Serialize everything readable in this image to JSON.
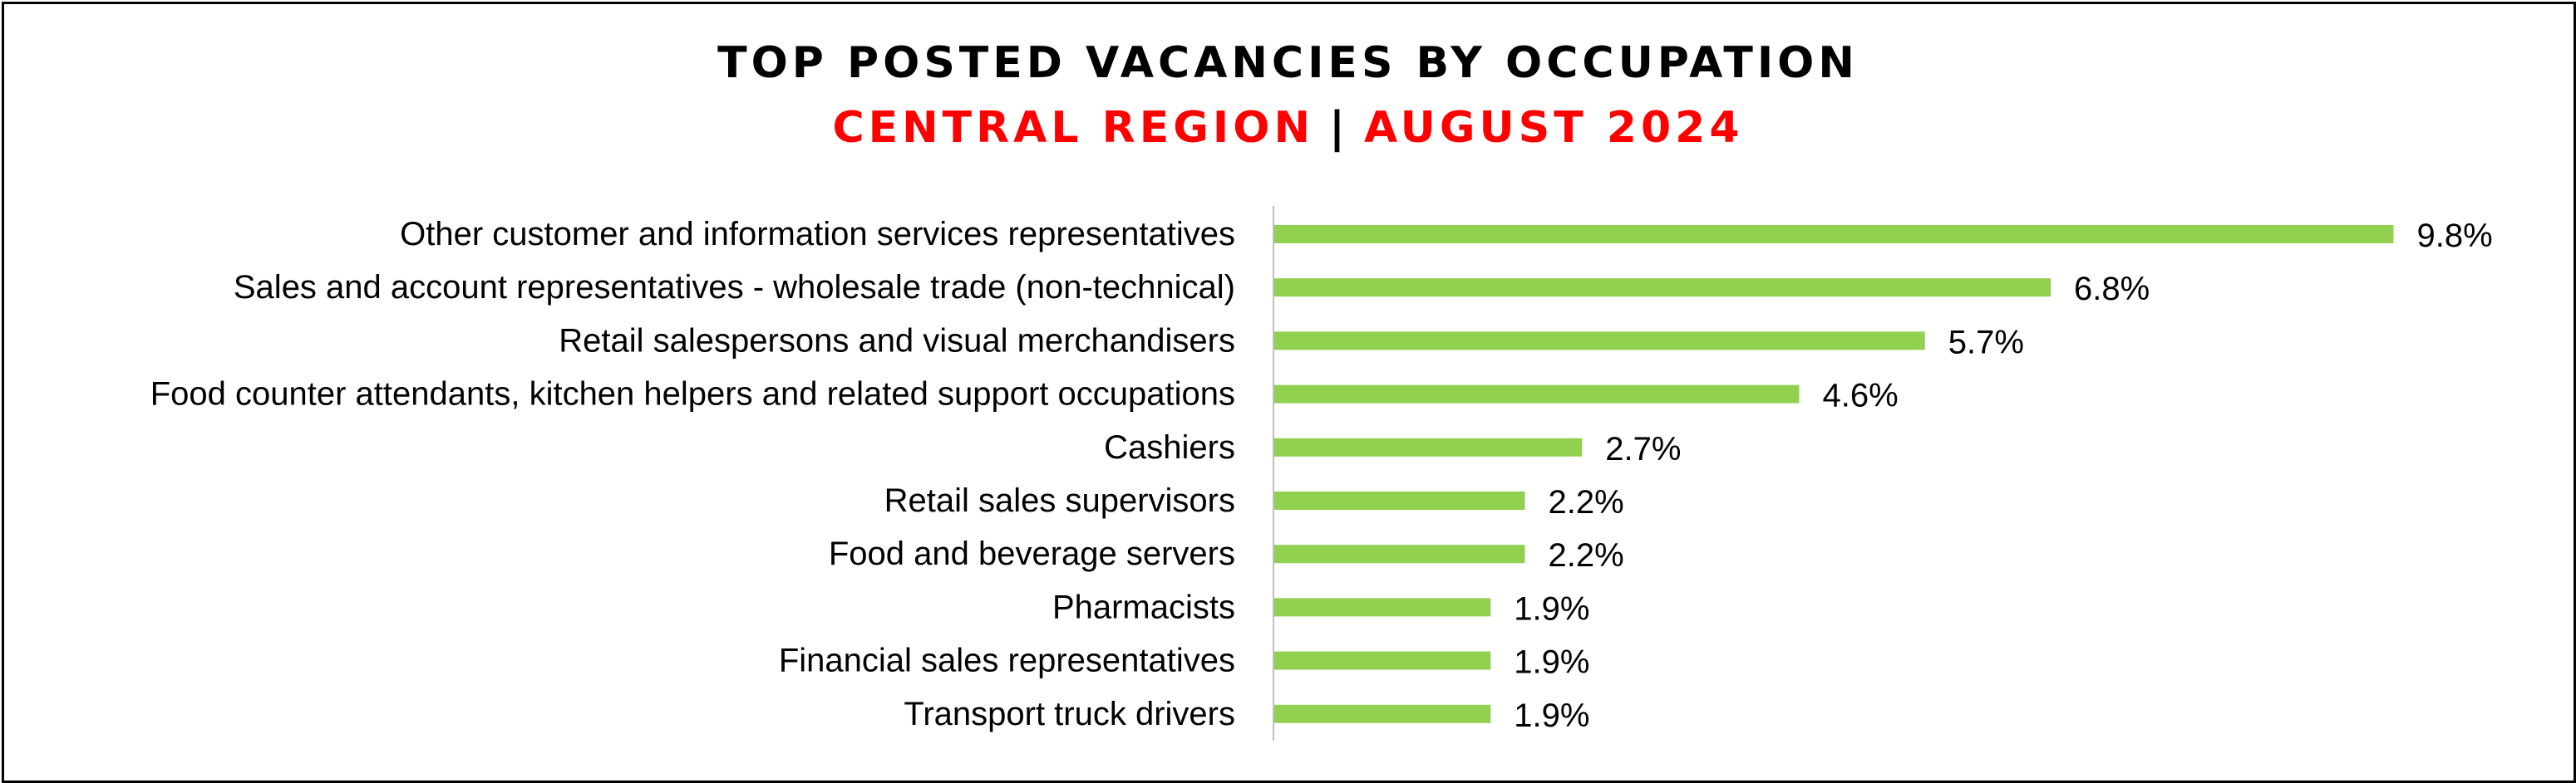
{
  "chart_data": {
    "type": "bar",
    "orientation": "horizontal",
    "title": "TOP POSTED VACANCIES BY OCCUPATION",
    "subtitle": {
      "region": "CENTRAL REGION",
      "separator": "|",
      "period": "AUGUST 2024"
    },
    "categories": [
      "Other customer and information services representatives",
      "Sales and account representatives - wholesale trade (non-technical)",
      "Retail salespersons and visual merchandisers",
      "Food counter attendants, kitchen helpers and related support occupations",
      "Cashiers",
      "Retail sales supervisors",
      "Food and beverage servers",
      "Pharmacists",
      "Financial sales representatives",
      "Transport truck drivers"
    ],
    "values": [
      9.8,
      6.8,
      5.7,
      4.6,
      2.7,
      2.2,
      2.2,
      1.9,
      1.9,
      1.9
    ],
    "value_labels": [
      "9.8%",
      "6.8%",
      "5.7%",
      "4.6%",
      "2.7%",
      "2.2%",
      "2.2%",
      "1.9%",
      "1.9%",
      "1.9%"
    ],
    "unit": "%",
    "xlim": [
      0,
      10
    ],
    "grid": false,
    "legend": "none",
    "colors": {
      "bar": "#92d050",
      "title": "#000000",
      "subtitle": "#ff0000",
      "axis": "#bfbfbf"
    }
  }
}
